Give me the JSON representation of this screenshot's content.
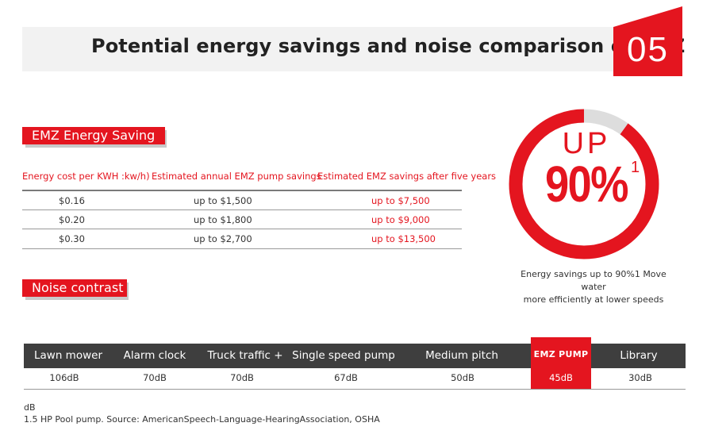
{
  "header": {
    "title": "Potential energy savings and noise comparison of EMZ",
    "section_number": "05"
  },
  "energy": {
    "tag_label": "EMZ Energy Saving",
    "columns": [
      "Energy cost per KWH :kw/h)",
      "Estimated annual EMZ pump savings",
      "Estimated EMZ savings after five years"
    ],
    "rows": [
      {
        "cost": "$0.16",
        "annual": "up to $1,500",
        "five_years": "up to $7,500"
      },
      {
        "cost": "$0.20",
        "annual": "up to $1,800",
        "five_years": "up to $9,000"
      },
      {
        "cost": "$0.30",
        "annual": "up to $2,700",
        "five_years": "up to $13,500"
      }
    ]
  },
  "badge": {
    "up_text": "UP",
    "percent_text": "90%",
    "superscript": "1",
    "fill_fraction": 0.9,
    "caption_line1": "Energy savings up to 90%1 Move water",
    "caption_line2": "more efficiently at lower speeds"
  },
  "noise": {
    "tag_label": "Noise contrast",
    "items": [
      {
        "label": "Lawn mower",
        "value": "106dB"
      },
      {
        "label": "Alarm clock",
        "value": "70dB"
      },
      {
        "label": "Truck traffic +",
        "value": "70dB"
      },
      {
        "label": "Single speed pump",
        "value": "67dB"
      },
      {
        "label": "Medium pitch",
        "value": "50dB"
      },
      {
        "label": "EMZ PUMP",
        "value": "45dB"
      },
      {
        "label": "Library",
        "value": "30dB"
      }
    ]
  },
  "footnotes": {
    "unit": "dB",
    "source": "1.5 HP Pool pump. Source: AmericanSpeech-Language-HearingAssociation, OSHA"
  },
  "colors": {
    "accent": "#e4151f",
    "dark_band": "#3e3e3e",
    "header_band": "#f2f2f2",
    "ring_track": "#dddddd"
  }
}
